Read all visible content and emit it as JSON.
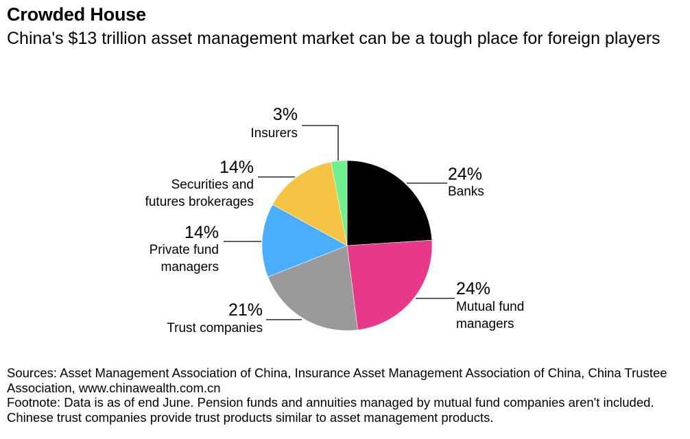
{
  "title": "Crowded House",
  "subtitle": "China's $13 trillion asset management market can be a tough place for foreign players",
  "chart_data": {
    "type": "pie",
    "title": "Crowded House",
    "subtitle": "China's $13 trillion asset management market can be a tough place for foreign players",
    "start_angle_deg": 0,
    "direction": "clockwise",
    "slices": [
      {
        "label": "Banks",
        "value": 24,
        "value_label": "24%",
        "label_lines": [
          "Banks"
        ],
        "color": "#000000"
      },
      {
        "label": "Mutual fund managers",
        "value": 24,
        "value_label": "24%",
        "label_lines": [
          "Mutual fund",
          "managers"
        ],
        "color": "#e8388a"
      },
      {
        "label": "Trust companies",
        "value": 21,
        "value_label": "21%",
        "label_lines": [
          "Trust companies"
        ],
        "color": "#9a9a9a"
      },
      {
        "label": "Private fund managers",
        "value": 14,
        "value_label": "14%",
        "label_lines": [
          "Private fund",
          "managers"
        ],
        "color": "#4aaeff"
      },
      {
        "label": "Securities and futures brokerages",
        "value": 14,
        "value_label": "14%",
        "label_lines": [
          "Securities and",
          "futures brokerages"
        ],
        "color": "#f5c444"
      },
      {
        "label": "Insurers",
        "value": 3,
        "value_label": "3%",
        "label_lines": [
          "Insurers"
        ],
        "color": "#6ff08e"
      }
    ]
  },
  "footer": {
    "sources": "Sources: Asset Management Association of China, Insurance Asset Management Association of China, China Trustee Association, www.chinawealth.com.cn",
    "footnote": "Footnote: Data is as of end June. Pension funds and annuities managed by mutual fund companies aren't included. Chinese trust companies provide trust products similar to asset management products."
  }
}
